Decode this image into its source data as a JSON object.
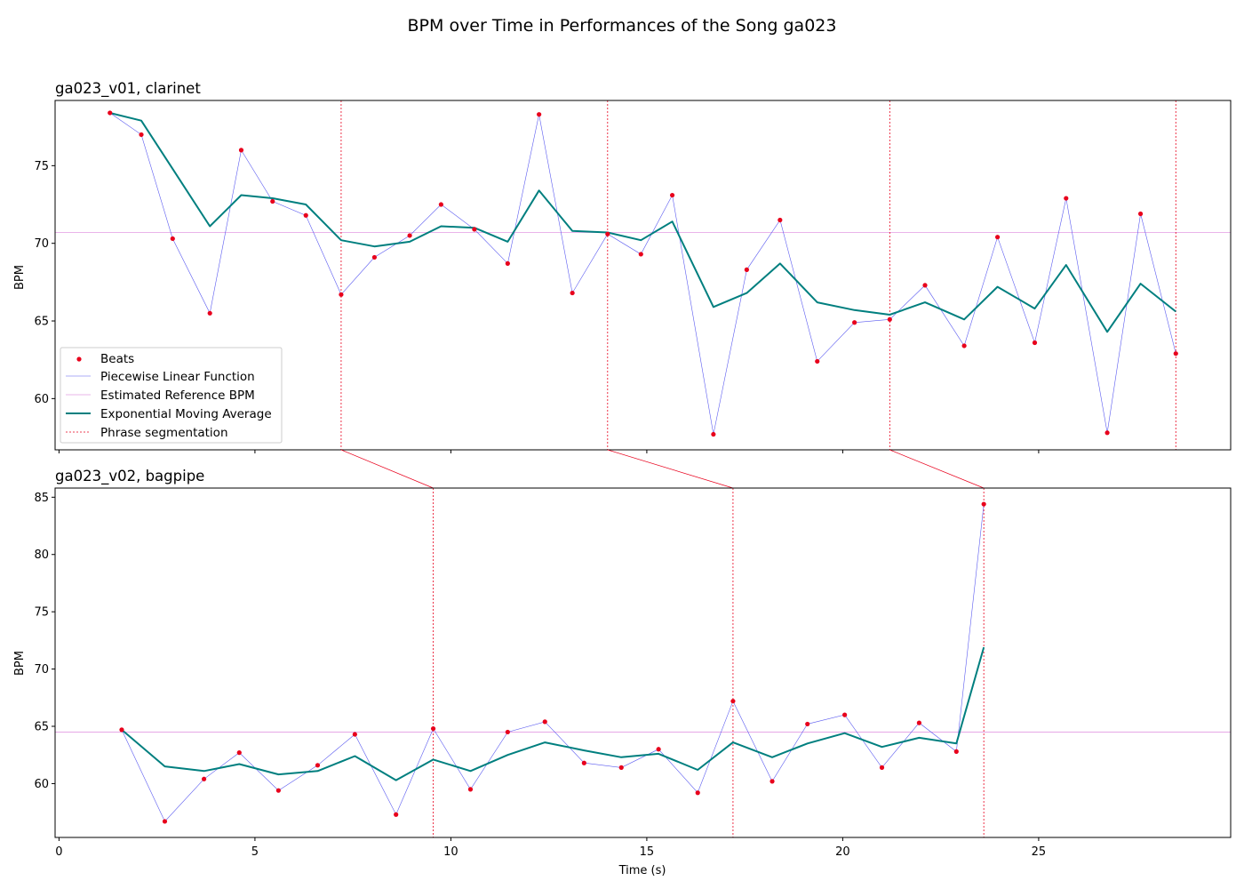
{
  "title": "BPM over Time in Performances of the Song ga023",
  "xlabel": "Time (s)",
  "legend": {
    "placement": "lower-left of top panel",
    "items": [
      {
        "key": "beats",
        "label": "Beats"
      },
      {
        "key": "pwl",
        "label": "Piecewise Linear Function"
      },
      {
        "key": "ref",
        "label": "Estimated Reference BPM"
      },
      {
        "key": "ema",
        "label": "Exponential Moving Average"
      },
      {
        "key": "phrase",
        "label": "Phrase segmentation"
      }
    ]
  },
  "colors": {
    "beats": "#e8001c",
    "pwl": "#5b5bf0",
    "ref": "#e39be3",
    "ema": "#007f7f",
    "phrase": "#e8001c"
  },
  "chart_data": [
    {
      "type": "line",
      "title": "ga023_v01, clarinet",
      "ylabel": "BPM",
      "xlim": [
        -0.1,
        29.9
      ],
      "ylim": [
        56.7,
        79.2
      ],
      "xticks": [
        0,
        5,
        10,
        15,
        20,
        25
      ],
      "yticks": [
        60,
        65,
        70,
        75
      ],
      "reference_bpm": 70.7,
      "phrase_boundaries": [
        7.2,
        14.0,
        21.2,
        28.5
      ],
      "beats": {
        "x": [
          1.3,
          2.1,
          2.9,
          3.85,
          4.65,
          5.45,
          6.3,
          7.2,
          8.05,
          8.95,
          9.75,
          10.6,
          11.45,
          12.25,
          13.1,
          14.0,
          14.85,
          15.65,
          16.7,
          17.55,
          18.4,
          19.35,
          20.3,
          21.2,
          22.1,
          23.1,
          23.95,
          24.9,
          25.7,
          26.75,
          27.6,
          28.5
        ],
        "y": [
          78.4,
          77.0,
          70.3,
          65.5,
          76.0,
          72.7,
          71.8,
          66.7,
          69.1,
          70.5,
          72.5,
          70.9,
          68.7,
          78.3,
          66.8,
          70.6,
          69.3,
          73.1,
          57.7,
          68.3,
          71.5,
          62.4,
          64.9,
          65.1,
          67.3,
          63.4,
          70.4,
          63.6,
          72.9,
          57.8,
          71.9,
          62.9
        ]
      },
      "ema": {
        "x": [
          1.3,
          2.1,
          2.9,
          3.85,
          4.65,
          5.45,
          6.3,
          7.2,
          8.05,
          8.95,
          9.75,
          10.6,
          11.45,
          12.25,
          13.1,
          14.0,
          14.85,
          15.65,
          16.7,
          17.55,
          18.4,
          19.35,
          20.3,
          21.2,
          22.1,
          23.1,
          23.95,
          24.9,
          25.7,
          26.75,
          27.6,
          28.5
        ],
        "y": [
          78.4,
          77.9,
          74.8,
          71.1,
          73.1,
          72.9,
          72.5,
          70.2,
          69.8,
          70.1,
          71.1,
          71.0,
          70.1,
          73.4,
          70.8,
          70.7,
          70.2,
          71.4,
          65.9,
          66.8,
          68.7,
          66.2,
          65.7,
          65.4,
          66.2,
          65.1,
          67.2,
          65.8,
          68.6,
          64.3,
          67.4,
          65.6
        ]
      }
    },
    {
      "type": "line",
      "title": "ga023_v02, bagpipe",
      "ylabel": "BPM",
      "xlim": [
        -0.1,
        29.9
      ],
      "ylim": [
        55.3,
        85.8
      ],
      "xticks": [
        0,
        5,
        10,
        15,
        20,
        25
      ],
      "xticklabels": [
        "0",
        "5",
        "10",
        "15",
        "20",
        "25"
      ],
      "yticks": [
        60,
        65,
        70,
        75,
        80,
        85
      ],
      "reference_bpm": 64.5,
      "phrase_boundaries": [
        9.55,
        17.2,
        23.6
      ],
      "beats": {
        "x": [
          1.6,
          2.7,
          3.7,
          4.6,
          5.6,
          6.6,
          7.55,
          8.6,
          9.55,
          10.5,
          11.45,
          12.4,
          13.4,
          14.35,
          15.3,
          16.3,
          17.2,
          18.2,
          19.1,
          20.05,
          21.0,
          21.95,
          22.9,
          23.6
        ],
        "y": [
          64.7,
          56.7,
          60.4,
          62.7,
          59.4,
          61.6,
          64.3,
          57.3,
          64.8,
          59.5,
          64.5,
          65.4,
          61.8,
          61.4,
          63.0,
          59.2,
          67.2,
          60.2,
          65.2,
          66.0,
          61.4,
          65.3,
          62.8,
          84.4
        ]
      },
      "ema": {
        "x": [
          1.6,
          2.7,
          3.7,
          4.6,
          5.6,
          6.6,
          7.55,
          8.6,
          9.55,
          10.5,
          11.45,
          12.4,
          13.4,
          14.35,
          15.3,
          16.3,
          17.2,
          18.2,
          19.1,
          20.05,
          21.0,
          21.95,
          22.9,
          23.6
        ],
        "y": [
          64.7,
          61.5,
          61.1,
          61.7,
          60.8,
          61.1,
          62.4,
          60.3,
          62.1,
          61.1,
          62.5,
          63.6,
          62.9,
          62.3,
          62.6,
          61.2,
          63.6,
          62.3,
          63.5,
          64.4,
          63.2,
          64.0,
          63.5,
          71.9
        ]
      }
    }
  ]
}
